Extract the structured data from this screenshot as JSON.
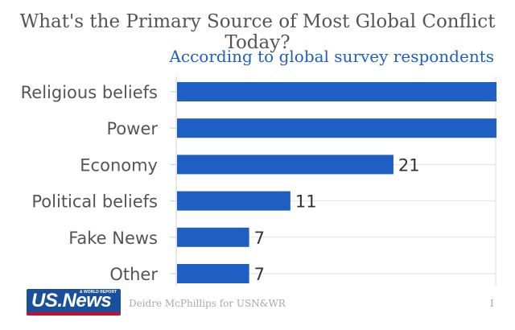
{
  "chart_data": {
    "type": "bar",
    "orientation": "horizontal",
    "title": "What's the Primary Source of Most Global Conflict Today?",
    "subtitle": "According to global survey respondents",
    "categories": [
      "Religious beliefs",
      "Power",
      "Economy",
      "Political beliefs",
      "Fake News",
      "Other"
    ],
    "values": [
      31,
      31,
      21,
      11,
      7,
      7
    ],
    "value_labels": [
      "",
      "",
      "21",
      "11",
      "7",
      "7"
    ],
    "xlim": [
      0,
      31
    ],
    "bar_color": "#1f5fc4",
    "gridlines": true
  },
  "footer": {
    "logo_text": "US.News",
    "logo_small": "& WORLD REPORT",
    "credit": "Deidre McPhillips for USN&WR",
    "page_marker": "I"
  }
}
